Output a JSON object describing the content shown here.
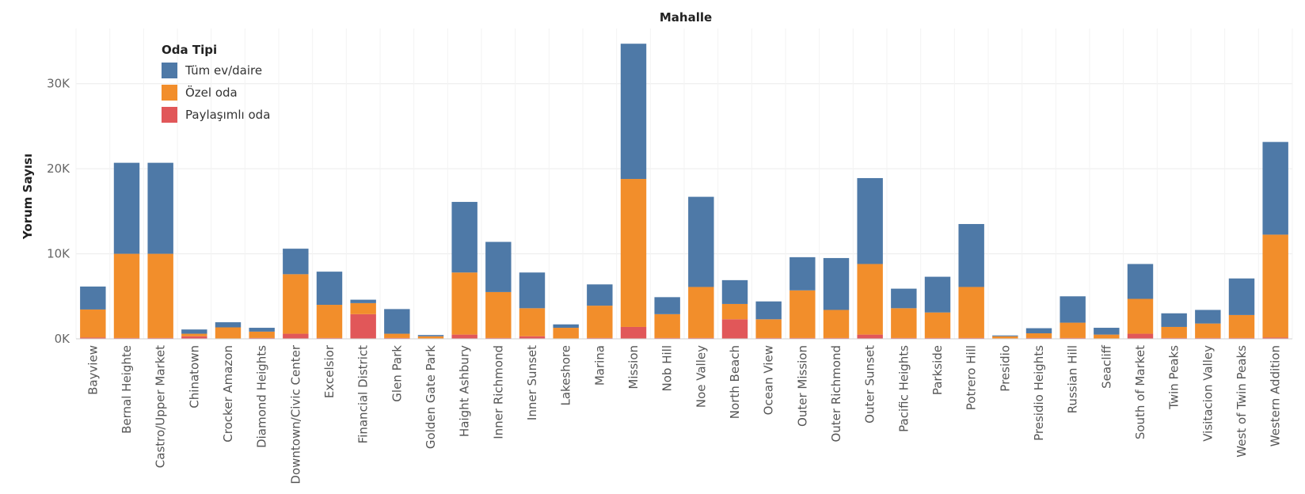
{
  "chart_data": {
    "type": "bar",
    "stacked": true,
    "title": "Mahalle",
    "xlabel": "",
    "ylabel": "Yorum Sayısı",
    "ylim": [
      0,
      35000
    ],
    "yticks": [
      0,
      10000,
      20000,
      30000
    ],
    "ytick_labels": [
      "0K",
      "10K",
      "20K",
      "30K"
    ],
    "grid": true,
    "legend": {
      "title": "Oda Tipi",
      "placement": "top-left"
    },
    "categories": [
      "Bayview",
      "Bernal Heighte",
      "Castro/Upper Market",
      "Chinatown",
      "Crocker Amazon",
      "Diamond Heights",
      "Downtown/Civic Center",
      "Excelsior",
      "Financial District",
      "Glen Park",
      "Golden Gate Park",
      "Haight Ashbury",
      "Inner Richmond",
      "Inner Sunset",
      "Lakeshore",
      "Marina",
      "Mission",
      "Nob Hill",
      "Noe Valley",
      "North Beach",
      "Ocean View",
      "Outer Mission",
      "Outer Richmond",
      "Outer Sunset",
      "Pacific Heights",
      "Parkside",
      "Potrero Hill",
      "Presidio",
      "Presidio Heights",
      "Russian Hill",
      "Seacliff",
      "South of Market",
      "Twin Peaks",
      "Visitacion Valley",
      "West of Twin Peaks",
      "Western Addition"
    ],
    "series": [
      {
        "name": "Paylaşımlı oda",
        "color": "#e15759",
        "values": [
          150,
          100,
          100,
          300,
          50,
          100,
          600,
          100,
          2900,
          100,
          50,
          500,
          100,
          300,
          50,
          100,
          1400,
          100,
          100,
          2300,
          100,
          100,
          100,
          500,
          100,
          100,
          100,
          50,
          100,
          100,
          50,
          600,
          100,
          100,
          100,
          150
        ]
      },
      {
        "name": "Özel oda",
        "color": "#f28e2b",
        "values": [
          3300,
          9900,
          9900,
          300,
          1300,
          750,
          7000,
          3900,
          1300,
          500,
          250,
          7300,
          5400,
          3300,
          1250,
          3800,
          17400,
          2800,
          6000,
          1800,
          2200,
          5600,
          3300,
          8300,
          3500,
          3000,
          6000,
          250,
          550,
          1800,
          450,
          4100,
          1300,
          1700,
          2700,
          12100
        ]
      },
      {
        "name": "Tüm ev/daire",
        "color": "#4e79a7",
        "values": [
          2700,
          10700,
          10700,
          500,
          600,
          450,
          3000,
          3900,
          400,
          2900,
          150,
          8300,
          5900,
          4200,
          400,
          2500,
          15900,
          2000,
          10600,
          2800,
          2100,
          3900,
          6100,
          10100,
          2300,
          4200,
          7400,
          100,
          600,
          3100,
          800,
          4100,
          1600,
          1600,
          4300,
          10900
        ]
      }
    ]
  }
}
